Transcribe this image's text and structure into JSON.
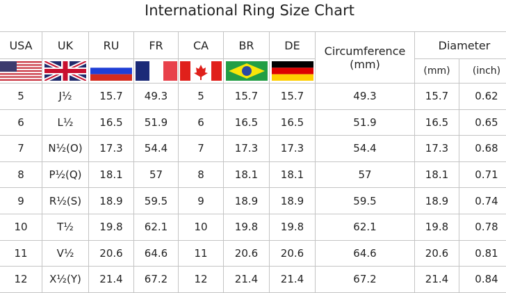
{
  "title": "International Ring Size Chart",
  "headers": {
    "usa": "USA",
    "uk": "UK",
    "ru": "RU",
    "fr": "FR",
    "ca": "CA",
    "br": "BR",
    "de": "DE",
    "circ": "Circumference",
    "circ_unit": "(mm)",
    "diam": "Diameter",
    "diam_mm": "(mm)",
    "diam_inch": "(inch)"
  },
  "flags": [
    "us-flag-icon",
    "uk-flag-icon",
    "russia-flag-icon",
    "france-flag-icon",
    "canada-flag-icon",
    "brazil-flag-icon",
    "germany-flag-icon"
  ],
  "rows": [
    [
      "5",
      "J½",
      "15.7",
      "49.3",
      "5",
      "15.7",
      "15.7",
      "49.3",
      "15.7",
      "0.62"
    ],
    [
      "6",
      "L½",
      "16.5",
      "51.9",
      "6",
      "16.5",
      "16.5",
      "51.9",
      "16.5",
      "0.65"
    ],
    [
      "7",
      "N½(O)",
      "17.3",
      "54.4",
      "7",
      "17.3",
      "17.3",
      "54.4",
      "17.3",
      "0.68"
    ],
    [
      "8",
      "P½(Q)",
      "18.1",
      "57",
      "8",
      "18.1",
      "18.1",
      "57",
      "18.1",
      "0.71"
    ],
    [
      "9",
      "R½(S)",
      "18.9",
      "59.5",
      "9",
      "18.9",
      "18.9",
      "59.5",
      "18.9",
      "0.74"
    ],
    [
      "10",
      "T½",
      "19.8",
      "62.1",
      "10",
      "19.8",
      "19.8",
      "62.1",
      "19.8",
      "0.78"
    ],
    [
      "11",
      "V½",
      "20.6",
      "64.6",
      "11",
      "20.6",
      "20.6",
      "64.6",
      "20.6",
      "0.81"
    ],
    [
      "12",
      "X½(Y)",
      "21.4",
      "67.2",
      "12",
      "21.4",
      "21.4",
      "67.2",
      "21.4",
      "0.84"
    ]
  ]
}
